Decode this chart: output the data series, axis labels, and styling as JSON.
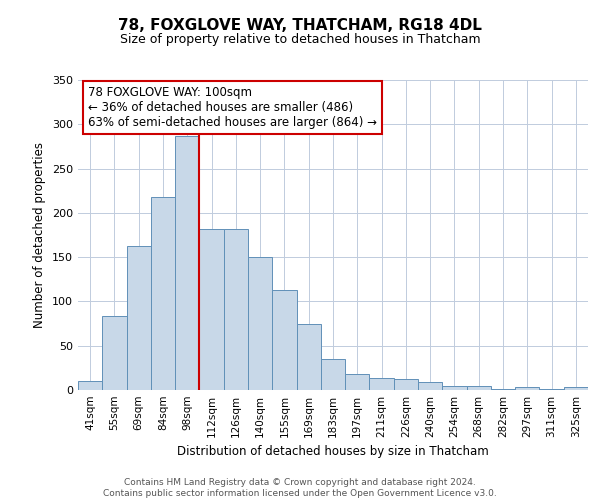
{
  "title": "78, FOXGLOVE WAY, THATCHAM, RG18 4DL",
  "subtitle": "Size of property relative to detached houses in Thatcham",
  "xlabel": "Distribution of detached houses by size in Thatcham",
  "ylabel": "Number of detached properties",
  "bin_labels": [
    "41sqm",
    "55sqm",
    "69sqm",
    "84sqm",
    "98sqm",
    "112sqm",
    "126sqm",
    "140sqm",
    "155sqm",
    "169sqm",
    "183sqm",
    "197sqm",
    "211sqm",
    "226sqm",
    "240sqm",
    "254sqm",
    "268sqm",
    "282sqm",
    "297sqm",
    "311sqm",
    "325sqm"
  ],
  "bar_values": [
    10,
    84,
    163,
    218,
    287,
    182,
    182,
    150,
    113,
    75,
    35,
    18,
    13,
    12,
    9,
    5,
    5,
    1,
    3,
    1,
    3
  ],
  "bar_color": "#c8d8e8",
  "bar_edge_color": "#6090b8",
  "vline_x": 4.5,
  "vline_color": "#cc0000",
  "annotation_title": "78 FOXGLOVE WAY: 100sqm",
  "annotation_line1": "← 36% of detached houses are smaller (486)",
  "annotation_line2": "63% of semi-detached houses are larger (864) →",
  "annotation_box_color": "#ffffff",
  "annotation_box_edge": "#cc0000",
  "ylim": [
    0,
    350
  ],
  "yticks": [
    0,
    50,
    100,
    150,
    200,
    250,
    300,
    350
  ],
  "footer1": "Contains HM Land Registry data © Crown copyright and database right 2024.",
  "footer2": "Contains public sector information licensed under the Open Government Licence v3.0.",
  "background_color": "#ffffff",
  "grid_color": "#c0ccdd",
  "title_fontsize": 11,
  "subtitle_fontsize": 9,
  "ylabel_fontsize": 8.5,
  "xlabel_fontsize": 8.5,
  "tick_fontsize": 7.5,
  "ytick_fontsize": 8,
  "footer_fontsize": 6.5,
  "ann_fontsize": 8.5
}
